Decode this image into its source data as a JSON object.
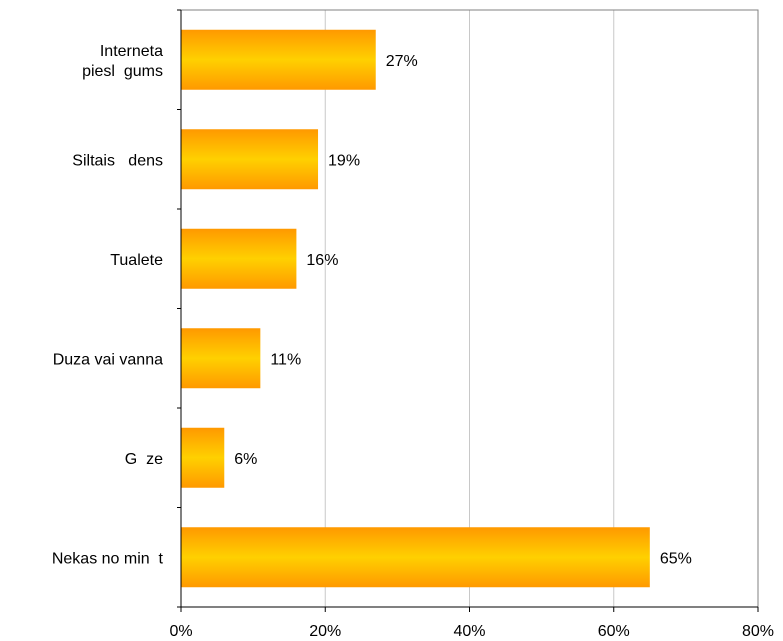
{
  "chart_data": {
    "type": "bar",
    "orientation": "horizontal",
    "categories": [
      [
        "Interneta",
        "piesl  gums"
      ],
      [
        "Siltais   dens"
      ],
      [
        "Tualete"
      ],
      [
        "Duza vai vanna"
      ],
      [
        "G  ze"
      ],
      [
        "Nekas no min  t"
      ]
    ],
    "values": [
      27,
      19,
      16,
      11,
      6,
      65
    ],
    "value_labels": [
      "27%",
      "19%",
      "16%",
      "11%",
      "6%",
      "65%"
    ],
    "xlim": [
      0,
      80
    ],
    "xticks": [
      0,
      20,
      40,
      60,
      80
    ],
    "xtick_labels": [
      "0%",
      "20%",
      "40%",
      "60%",
      "80%"
    ],
    "grid": "vertical",
    "colors": {
      "bar_edge": "#ff9900",
      "bar_center": "#ffd000",
      "grid": "#c8c8c8",
      "axis": "#000000",
      "frame": "#808080"
    }
  }
}
